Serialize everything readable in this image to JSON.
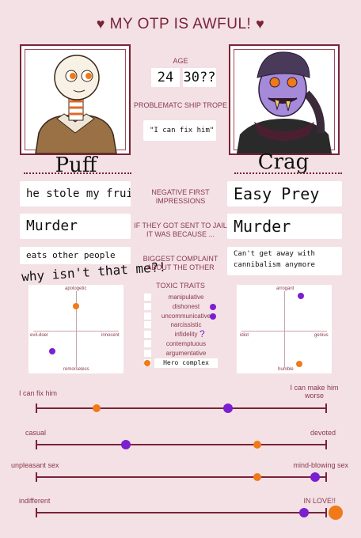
{
  "header": {
    "title": "MY OTP IS AWFUL!"
  },
  "characters": {
    "left": {
      "name": "Puff",
      "age": "24"
    },
    "right": {
      "name": "Crag",
      "age": "30??"
    }
  },
  "labels": {
    "age": "AGE",
    "trope": "PROBLEMATC SHIP TROPE",
    "negative": "NEGATIVE FIRST IMPRESSIONS",
    "jail": "IF THEY GOT SENT TO JAIL IT WAS BECAUSE ...",
    "complaint": "BIGGEST COMPLAINT ABOUT THE OTHER",
    "toxic": "TOXIC TRAITS"
  },
  "answers": {
    "trope": "\"I can fix him\"",
    "left_negative": "he stole my fruit!!",
    "right_negative": "Easy Prey",
    "left_jail": "Murder",
    "right_jail": "Murder",
    "left_complaint_1": "eats other people",
    "left_complaint_2": "why isn't that me?!",
    "right_complaint": "Can't get away with cannibalism anymore"
  },
  "grids": {
    "left": {
      "top": "apologetic",
      "bottom": "remorseless",
      "left": "evil-doer",
      "right": "innocent"
    },
    "right": {
      "top": "arrogant",
      "bottom": "humble",
      "left": "idiot",
      "right": "genius"
    }
  },
  "toxic_traits": [
    "manipulative",
    "dishonest",
    "uncommunicative",
    "narcissistic",
    "infidelity",
    "contemptuous",
    "argumentative",
    "Hero complex"
  ],
  "toxic_marks": {
    "infidelity_note": "?"
  },
  "sliders": [
    {
      "left": "I can fix him",
      "right": "I can make him worse",
      "puff": 0.21,
      "crag": 0.66
    },
    {
      "left": "casual",
      "right": "devoted",
      "puff": 0.76,
      "crag": 0.31
    },
    {
      "left": "unpleasant sex",
      "right": "mind-blowing sex",
      "puff": 0.76,
      "crag": 0.96
    },
    {
      "left": "indifferent",
      "right": "IN LOVE!!",
      "puff": 1.03,
      "crag": 0.92
    }
  ],
  "colors": {
    "puff": "#f07a18",
    "crag": "#7b1fd0",
    "accent": "#7a2336"
  }
}
